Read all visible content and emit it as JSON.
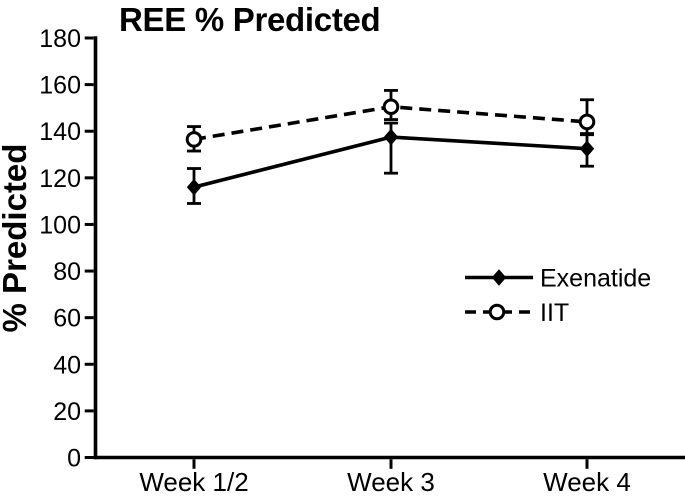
{
  "background_color": "#ffffff",
  "foreground_color": "#000000",
  "chart_data": {
    "type": "line",
    "title": "REE % Predicted",
    "ylabel": "% Predicted",
    "xlabel": "",
    "categories": [
      "Week 1/2",
      "Week 3",
      "Week 4"
    ],
    "ylim": [
      0,
      180
    ],
    "ytick_step": 20,
    "ytick_labels": [
      "0",
      "20",
      "40",
      "60",
      "80",
      "100",
      "120",
      "140",
      "160",
      "180"
    ],
    "grid": false,
    "legend_position": "inside-right",
    "error_bars": true,
    "series": [
      {
        "name": "Exenatide",
        "marker": "filled-diamond",
        "line_style": "solid",
        "color": "#000000",
        "values": [
          116,
          137.5,
          132.5
        ],
        "error_up": [
          8,
          6,
          6
        ],
        "error_down": [
          7,
          15.5,
          7.5
        ]
      },
      {
        "name": "IIT",
        "marker": "open-circle",
        "line_style": "dashed",
        "color": "#000000",
        "values": [
          136.5,
          150.5,
          144
        ],
        "error_up": [
          5.5,
          7,
          9.5
        ],
        "error_down": [
          5,
          5.5,
          5
        ]
      }
    ]
  }
}
